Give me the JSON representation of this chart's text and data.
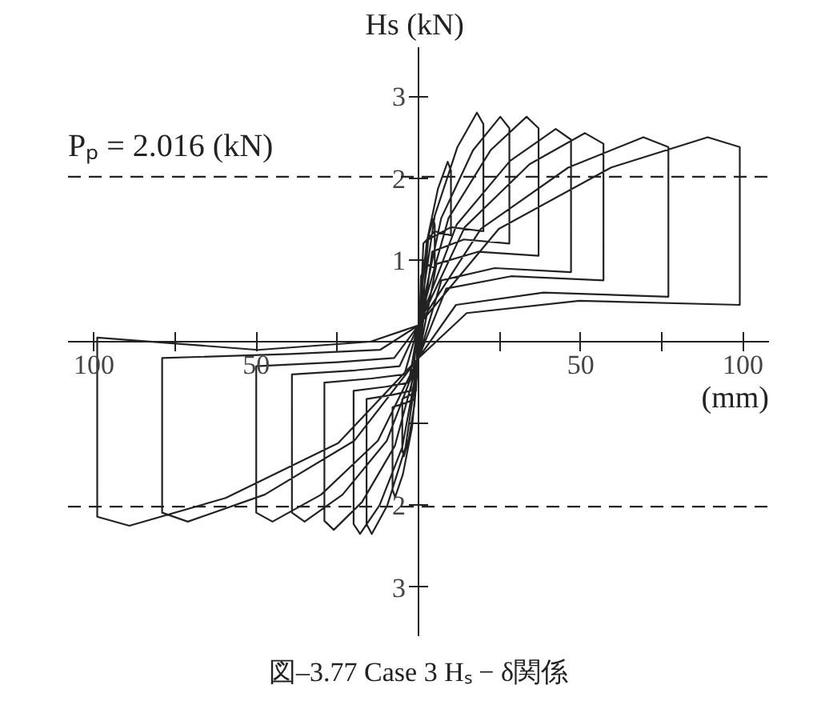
{
  "chart_data": {
    "type": "line",
    "title": "図–3.77 Case 3 Hₛ − δ関係",
    "xlabel": "(mm)",
    "ylabel": "Hs  (kN)",
    "xlim": [
      -108,
      108
    ],
    "ylim": [
      -3.6,
      3.6
    ],
    "xticks": [
      {
        "value": -100,
        "label": "100"
      },
      {
        "value": -75,
        "label": null
      },
      {
        "value": -50,
        "label": "50"
      },
      {
        "value": -25,
        "label": null
      },
      {
        "value": 0,
        "label": null
      },
      {
        "value": 25,
        "label": null
      },
      {
        "value": 50,
        "label": "50"
      },
      {
        "value": 75,
        "label": null
      },
      {
        "value": 100,
        "label": "100"
      }
    ],
    "yticks": [
      {
        "value": -3,
        "label": "3"
      },
      {
        "value": -2,
        "label": "2"
      },
      {
        "value": -1,
        "label": null
      },
      1,
      2,
      3
    ],
    "grid": false,
    "line_style": "solid",
    "ref_lines": [
      {
        "axis": "y",
        "value": 2.016,
        "label": "Pₚ = 2.016 (kN)",
        "line_style": "dashed",
        "color": "#222222"
      },
      {
        "axis": "y",
        "value": -2.016,
        "line_style": "dashed",
        "color": "#222222"
      }
    ],
    "series": [
      {
        "color": "#222222",
        "x": [
          0,
          1.25,
          3,
          4.5,
          5,
          5,
          2.5,
          0.75,
          0,
          -1.25,
          -3,
          -4.5,
          -5,
          -5,
          -2.5,
          -0.75,
          0,
          2.5,
          6,
          9,
          10,
          10,
          5,
          1.5,
          0,
          -2,
          -4.8,
          -7.2,
          -8,
          -8,
          -4,
          -1.2,
          0,
          5,
          12,
          18,
          20,
          20,
          10,
          3,
          0,
          -4,
          -9.6,
          -14.4,
          -16,
          -16,
          -8,
          -2.4,
          0,
          7,
          16.8,
          25.2,
          28,
          28,
          14,
          4.2,
          0,
          -5,
          -12,
          -18,
          -20,
          -20,
          -10,
          -3,
          0,
          9.25,
          22.2,
          33.3,
          37,
          37,
          18.5,
          5.55,
          0,
          -7.25,
          -17.4,
          -26.1,
          -29,
          -29,
          -14.5,
          -4.35,
          0,
          11.75,
          28.2,
          42.3,
          47,
          47,
          23.5,
          7.05,
          0,
          -9.75,
          -23.4,
          -35.1,
          -39,
          -39,
          -19.5,
          -5.85,
          0,
          14.25,
          34.2,
          51.3,
          57,
          57,
          28.5,
          8.55,
          0,
          -12.5,
          -30,
          -45,
          -50,
          -50,
          -25,
          -7.5,
          0,
          19.25,
          46.2,
          69.3,
          77,
          77,
          38.5,
          11.55,
          0,
          -19.75,
          -47.4,
          -71.1,
          -79,
          -79,
          -39.5,
          -11.85,
          0,
          24.75,
          59.4,
          89.1,
          99,
          99,
          49.5,
          14.85,
          0,
          -24.75,
          -59.4,
          -89.1,
          -99,
          -99,
          -49.5,
          -14.85,
          0
        ],
        "values": [
          0,
          0.83,
          1.28,
          1.5,
          1.43,
          0.9,
          0.95,
          0.8,
          -0.2,
          -0.77,
          -1.19,
          -1.4,
          -1.33,
          -0.7,
          -0.65,
          -0.6,
          0.2,
          1.21,
          1.87,
          2.2,
          2.09,
          1.3,
          1.35,
          1.2,
          -0.2,
          -1.05,
          -1.62,
          -1.9,
          -1.81,
          -0.8,
          -0.75,
          -0.7,
          0.2,
          1.54,
          2.38,
          2.8,
          2.66,
          1.35,
          1.4,
          1.25,
          -0.2,
          -1.29,
          -2.0,
          -2.35,
          -2.23,
          -0.7,
          -0.65,
          -0.6,
          0.2,
          1.51,
          2.34,
          2.75,
          2.61,
          1.2,
          1.25,
          1.1,
          -0.2,
          -1.29,
          -2.0,
          -2.35,
          -2.23,
          -0.6,
          -0.55,
          -0.5,
          0.2,
          1.51,
          2.34,
          2.75,
          2.61,
          1.05,
          1.1,
          0.95,
          -0.2,
          -1.27,
          -1.96,
          -2.3,
          -2.19,
          -0.5,
          -0.45,
          -0.4,
          0.2,
          1.43,
          2.21,
          2.6,
          2.47,
          0.85,
          0.9,
          0.75,
          -0.2,
          -1.21,
          -1.87,
          -2.2,
          -2.09,
          -0.4,
          -0.35,
          -0.3,
          0.2,
          1.4,
          2.17,
          2.55,
          2.42,
          0.75,
          0.8,
          0.65,
          -0.2,
          -1.21,
          -1.87,
          -2.2,
          -2.09,
          -0.3,
          -0.25,
          -0.2,
          0.2,
          1.38,
          2.13,
          2.5,
          2.38,
          0.55,
          0.6,
          0.45,
          -0.2,
          -1.21,
          -1.87,
          -2.2,
          -2.09,
          -0.2,
          -0.15,
          -0.1,
          0.2,
          1.38,
          2.13,
          2.5,
          2.38,
          0.45,
          0.5,
          0.35,
          -0.2,
          -1.24,
          -1.91,
          -2.25,
          -2.14,
          0.05,
          -0.1,
          0.0,
          0.2
        ]
      }
    ]
  }
}
